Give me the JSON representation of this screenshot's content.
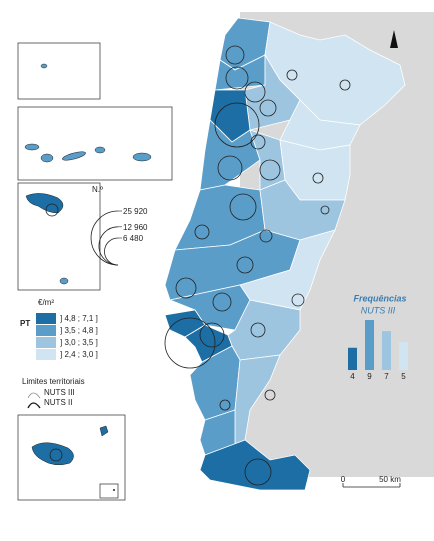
{
  "legend": {
    "unit": "€/m²",
    "country": "PT",
    "classes": [
      {
        "label": "] 4,8 ; 7,1 ]",
        "color": "#1c6ea4"
      },
      {
        "label": "] 3,5 ; 4,8 ]",
        "color": "#5a9dc9"
      },
      {
        "label": "] 3,0 ; 3,5 ]",
        "color": "#9dc5e0"
      },
      {
        "label": "] 2,4 ; 3,0 ]",
        "color": "#d0e4f1"
      }
    ]
  },
  "bubble_legend": {
    "title": "N.º",
    "sizes": [
      {
        "value": 25920,
        "label": "25 920"
      },
      {
        "value": 12960,
        "label": "12 960"
      },
      {
        "value": 6480,
        "label": "6 480"
      }
    ]
  },
  "map_circles": [
    2880,
    4300,
    3560,
    17210,
    2280,
    890,
    890,
    1740,
    5120,
    3560,
    890,
    6010,
    1280,
    570,
    1740,
    3560,
    2280,
    2880,
    1280,
    22220,
    5120,
    1740,
    890,
    890,
    6010
  ],
  "boundaries": {
    "title": "Limites territoriais",
    "items": [
      "NUTS III",
      "NUTS II"
    ]
  },
  "frequencies": {
    "title": "Frequências",
    "subtitle": "NUTS III",
    "values": [
      4,
      9,
      7,
      5
    ]
  },
  "scale_bar": {
    "start": "0",
    "end": "50 km"
  }
}
